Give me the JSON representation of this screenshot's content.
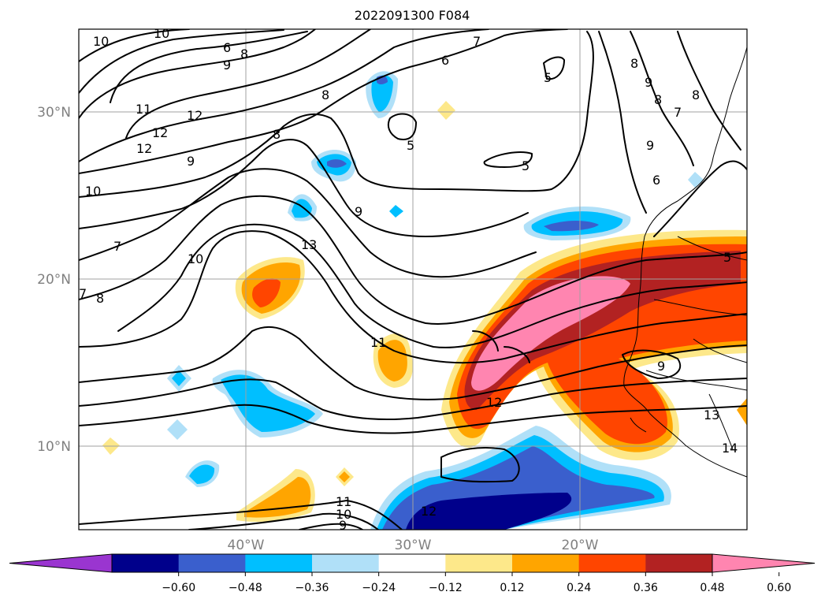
{
  "title": "2022091300 F084",
  "lat_labels": [
    "30°N",
    "20°N",
    "10°N"
  ],
  "lon_labels": [
    "40°W",
    "30°W",
    "20°W"
  ],
  "colorbar": {
    "ticks": [
      "−0.60",
      "−0.48",
      "−0.36",
      "−0.24",
      "−0.12",
      "0.12",
      "0.24",
      "0.36",
      "0.48",
      "0.60"
    ],
    "colors": [
      "#9a35d0",
      "#00008b",
      "#3a5fcd",
      "#00bfff",
      "#b0e0f8",
      "#ffffff",
      "#fde88a",
      "#ffa500",
      "#ff4500",
      "#b22222",
      "#ff85b0"
    ]
  },
  "contour_labels": [
    "10",
    "10",
    "6",
    "9",
    "8",
    "11",
    "12",
    "12",
    "12",
    "7",
    "6",
    "5",
    "8",
    "8",
    "9",
    "5",
    "9",
    "8",
    "7",
    "8",
    "10",
    "5",
    "9",
    "6",
    "13",
    "10",
    "7",
    "7",
    "8",
    "11",
    "12",
    "9",
    "13",
    "14",
    "5",
    "9",
    "8",
    "11",
    "12",
    "10",
    "9"
  ]
}
